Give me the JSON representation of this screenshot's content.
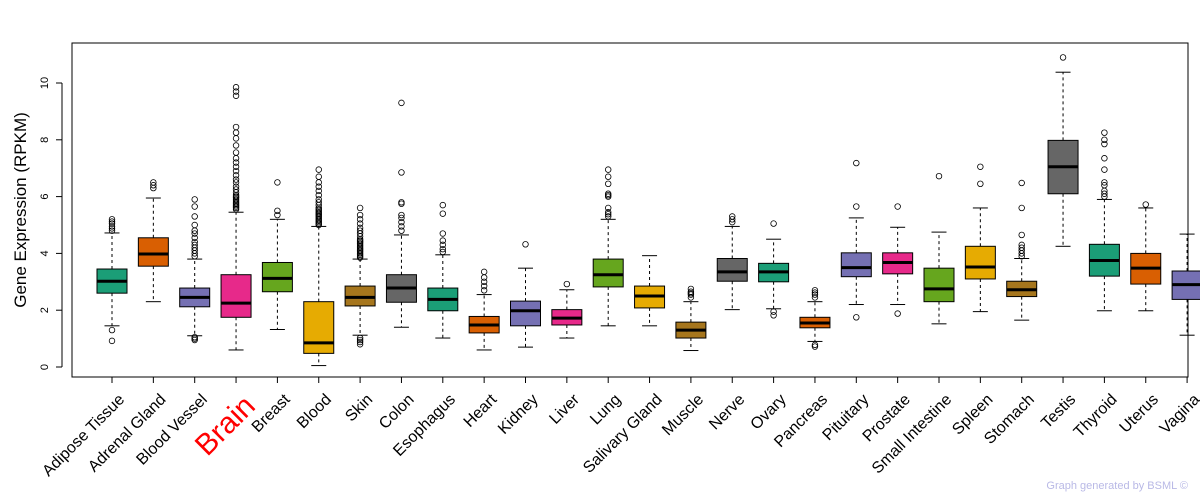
{
  "chart_data": {
    "type": "boxplot",
    "title": "",
    "xlabel": "",
    "ylabel": "Gene Expression (RPKM)",
    "ylim": [
      -0.3,
      11.3
    ],
    "yticks": [
      0,
      2,
      4,
      6,
      8,
      10
    ],
    "highlight": "Brain",
    "highlight_color": "#ff0000",
    "categories": [
      {
        "label": "Adipose Tissue",
        "color": "#1b9e77",
        "q1": 2.6,
        "median": 3.02,
        "q3": 3.45,
        "whisker_low": 1.45,
        "whisker_high": 4.72,
        "outliers": [
          0.92,
          1.3,
          4.8,
          4.88,
          4.95,
          5.05,
          5.12,
          5.2
        ]
      },
      {
        "label": "Adrenal Gland",
        "color": "#d95f02",
        "q1": 3.55,
        "median": 3.98,
        "q3": 4.55,
        "whisker_low": 2.3,
        "whisker_high": 5.95,
        "outliers": [
          6.3,
          6.4,
          6.5
        ]
      },
      {
        "label": "Blood Vessel",
        "color": "#7570b3",
        "q1": 2.12,
        "median": 2.45,
        "q3": 2.78,
        "whisker_low": 1.1,
        "whisker_high": 3.8,
        "outliers": [
          0.95,
          1.0,
          1.05,
          3.9,
          4.0,
          4.1,
          4.2,
          4.3,
          4.4,
          4.55,
          4.7,
          4.8,
          5.0,
          5.3,
          5.65,
          5.9
        ]
      },
      {
        "label": "Brain",
        "color": "#e7298a",
        "q1": 1.75,
        "median": 2.25,
        "q3": 3.25,
        "whisker_low": 0.6,
        "whisker_high": 5.45,
        "outliers": [
          5.55,
          5.6,
          5.65,
          5.7,
          5.75,
          5.8,
          5.85,
          5.9,
          5.95,
          6.0,
          6.05,
          6.15,
          6.25,
          6.35,
          6.5,
          6.6,
          6.75,
          6.9,
          7.05,
          7.2,
          7.35,
          7.55,
          7.8,
          8.05,
          8.25,
          8.45,
          9.55,
          9.7,
          9.85
        ]
      },
      {
        "label": "Breast",
        "color": "#66a61e",
        "q1": 2.65,
        "median": 3.12,
        "q3": 3.68,
        "whisker_low": 1.32,
        "whisker_high": 5.2,
        "outliers": [
          5.35,
          5.5,
          6.5
        ]
      },
      {
        "label": "Blood",
        "color": "#e6ab02",
        "q1": 0.48,
        "median": 0.85,
        "q3": 2.3,
        "whisker_low": 0.05,
        "whisker_high": 4.95,
        "outliers": [
          5.0,
          5.05,
          5.1,
          5.15,
          5.2,
          5.25,
          5.3,
          5.35,
          5.4,
          5.45,
          5.5,
          5.55,
          5.6,
          5.7,
          5.8,
          5.9,
          6.05,
          6.2,
          6.35,
          6.5,
          6.7,
          6.95
        ]
      },
      {
        "label": "Skin",
        "color": "#a6761d",
        "q1": 2.15,
        "median": 2.45,
        "q3": 2.85,
        "whisker_low": 1.12,
        "whisker_high": 3.8,
        "outliers": [
          0.8,
          0.88,
          0.95,
          1.02,
          3.85,
          3.9,
          3.95,
          4.0,
          4.05,
          4.1,
          4.15,
          4.2,
          4.25,
          4.3,
          4.35,
          4.4,
          4.45,
          4.5,
          4.6,
          4.7,
          4.8,
          4.9,
          5.05,
          5.2,
          5.35,
          5.6
        ]
      },
      {
        "label": "Colon",
        "color": "#666666",
        "q1": 2.28,
        "median": 2.78,
        "q3": 3.25,
        "whisker_low": 1.4,
        "whisker_high": 4.65,
        "outliers": [
          4.8,
          4.95,
          5.1,
          5.25,
          5.35,
          5.75,
          5.8,
          6.85,
          9.3
        ]
      },
      {
        "label": "Esophagus",
        "color": "#1b9e77",
        "q1": 1.98,
        "median": 2.38,
        "q3": 2.78,
        "whisker_low": 1.02,
        "whisker_high": 3.95,
        "outliers": [
          4.05,
          4.15,
          4.3,
          4.45,
          4.7,
          5.4,
          5.7
        ]
      },
      {
        "label": "Heart",
        "color": "#d95f02",
        "q1": 1.2,
        "median": 1.48,
        "q3": 1.78,
        "whisker_low": 0.6,
        "whisker_high": 2.55,
        "outliers": [
          2.7,
          2.85,
          3.0,
          3.15,
          3.35
        ]
      },
      {
        "label": "Kidney",
        "color": "#7570b3",
        "q1": 1.45,
        "median": 1.98,
        "q3": 2.32,
        "whisker_low": 0.7,
        "whisker_high": 3.48,
        "outliers": [
          4.32
        ]
      },
      {
        "label": "Liver",
        "color": "#e7298a",
        "q1": 1.48,
        "median": 1.72,
        "q3": 2.02,
        "whisker_low": 1.02,
        "whisker_high": 2.72,
        "outliers": [
          2.92
        ]
      },
      {
        "label": "Lung",
        "color": "#66a61e",
        "q1": 2.82,
        "median": 3.25,
        "q3": 3.8,
        "whisker_low": 1.45,
        "whisker_high": 5.2,
        "outliers": [
          5.3,
          5.38,
          5.45,
          5.6,
          6.0,
          6.05,
          6.1,
          6.45,
          6.7,
          6.95
        ]
      },
      {
        "label": "Salivary Gland",
        "color": "#e6ab02",
        "q1": 2.08,
        "median": 2.5,
        "q3": 2.85,
        "whisker_low": 1.45,
        "whisker_high": 3.92,
        "outliers": []
      },
      {
        "label": "Muscle",
        "color": "#a6761d",
        "q1": 1.02,
        "median": 1.3,
        "q3": 1.58,
        "whisker_low": 0.58,
        "whisker_high": 2.3,
        "outliers": [
          2.45,
          2.55,
          2.6,
          2.65,
          2.75
        ]
      },
      {
        "label": "Nerve",
        "color": "#666666",
        "q1": 3.02,
        "median": 3.35,
        "q3": 3.82,
        "whisker_low": 2.02,
        "whisker_high": 4.95,
        "outliers": [
          5.1,
          5.2,
          5.3
        ]
      },
      {
        "label": "Ovary",
        "color": "#1b9e77",
        "q1": 3.0,
        "median": 3.35,
        "q3": 3.65,
        "whisker_low": 2.05,
        "whisker_high": 4.5,
        "outliers": [
          1.82,
          1.95,
          5.05
        ]
      },
      {
        "label": "Pancreas",
        "color": "#d95f02",
        "q1": 1.38,
        "median": 1.55,
        "q3": 1.75,
        "whisker_low": 0.9,
        "whisker_high": 2.3,
        "outliers": [
          0.72,
          0.78,
          2.45,
          2.55,
          2.62,
          2.7
        ]
      },
      {
        "label": "Pituitary",
        "color": "#7570b3",
        "q1": 3.18,
        "median": 3.5,
        "q3": 4.02,
        "whisker_low": 2.2,
        "whisker_high": 5.25,
        "outliers": [
          1.75,
          5.65,
          7.18
        ]
      },
      {
        "label": "Prostate",
        "color": "#e7298a",
        "q1": 3.28,
        "median": 3.68,
        "q3": 4.02,
        "whisker_low": 2.2,
        "whisker_high": 4.92,
        "outliers": [
          1.88,
          5.65
        ]
      },
      {
        "label": "Small Intestine",
        "color": "#66a61e",
        "q1": 2.3,
        "median": 2.75,
        "q3": 3.48,
        "whisker_low": 1.52,
        "whisker_high": 4.75,
        "outliers": [
          6.72
        ]
      },
      {
        "label": "Spleen",
        "color": "#e6ab02",
        "q1": 3.1,
        "median": 3.52,
        "q3": 4.25,
        "whisker_low": 1.95,
        "whisker_high": 5.6,
        "outliers": [
          6.45,
          7.05
        ]
      },
      {
        "label": "Stomach",
        "color": "#a6761d",
        "q1": 2.48,
        "median": 2.72,
        "q3": 3.02,
        "whisker_low": 1.65,
        "whisker_high": 3.82,
        "outliers": [
          3.9,
          4.0,
          4.1,
          4.2,
          4.3,
          4.65,
          5.6,
          6.48
        ]
      },
      {
        "label": "Testis",
        "color": "#666666",
        "q1": 6.1,
        "median": 7.05,
        "q3": 7.98,
        "whisker_low": 4.25,
        "whisker_high": 10.38,
        "outliers": [
          10.9
        ]
      },
      {
        "label": "Thyroid",
        "color": "#1b9e77",
        "q1": 3.2,
        "median": 3.75,
        "q3": 4.32,
        "whisker_low": 1.98,
        "whisker_high": 5.9,
        "outliers": [
          6.0,
          6.1,
          6.2,
          6.4,
          6.5,
          6.95,
          7.35,
          7.85,
          8.0,
          8.25
        ]
      },
      {
        "label": "Uterus",
        "color": "#d95f02",
        "q1": 2.92,
        "median": 3.48,
        "q3": 4.0,
        "whisker_low": 1.98,
        "whisker_high": 5.6,
        "outliers": [
          5.72
        ]
      },
      {
        "label": "Vagina",
        "color": "#7570b3",
        "q1": 2.38,
        "median": 2.9,
        "q3": 3.38,
        "whisker_low": 1.12,
        "whisker_high": 4.68,
        "outliers": []
      }
    ]
  },
  "footer": {
    "credit": "Graph generated by BSML ©"
  }
}
